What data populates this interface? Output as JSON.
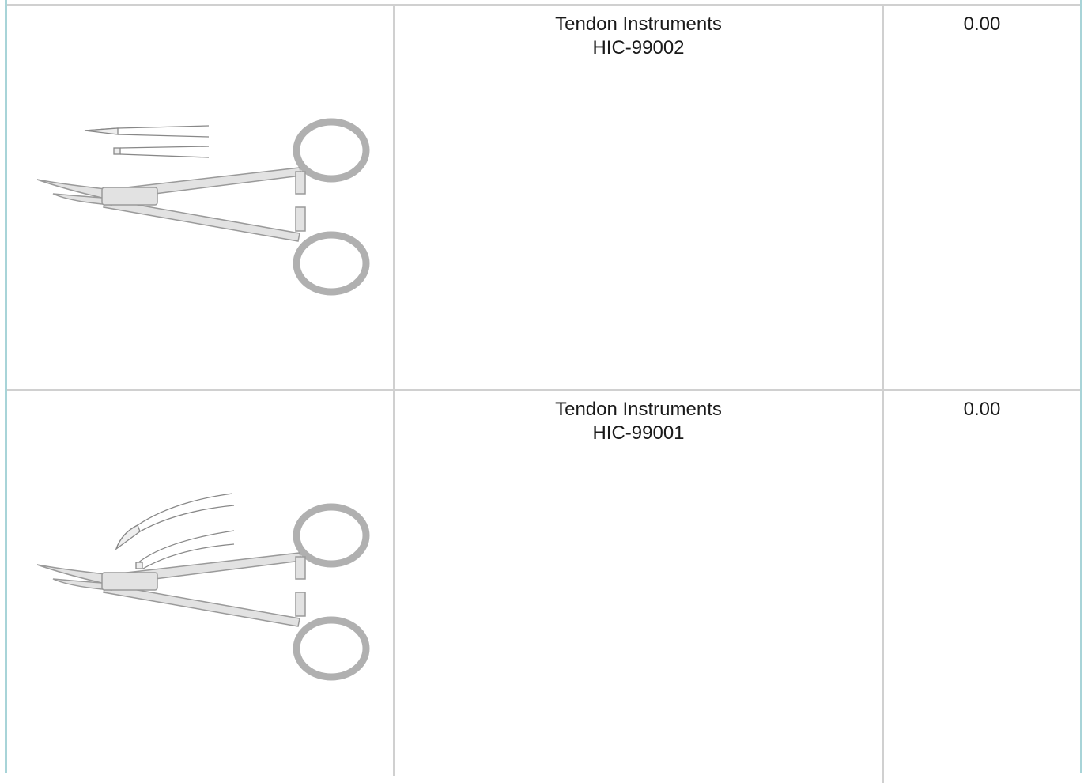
{
  "table": {
    "rows": [
      {
        "name": "Tendon Instruments",
        "code": "HIC-99002",
        "price": "0.00"
      },
      {
        "name": "Tendon Instruments",
        "code": "HIC-99001",
        "price": "0.00"
      }
    ]
  }
}
